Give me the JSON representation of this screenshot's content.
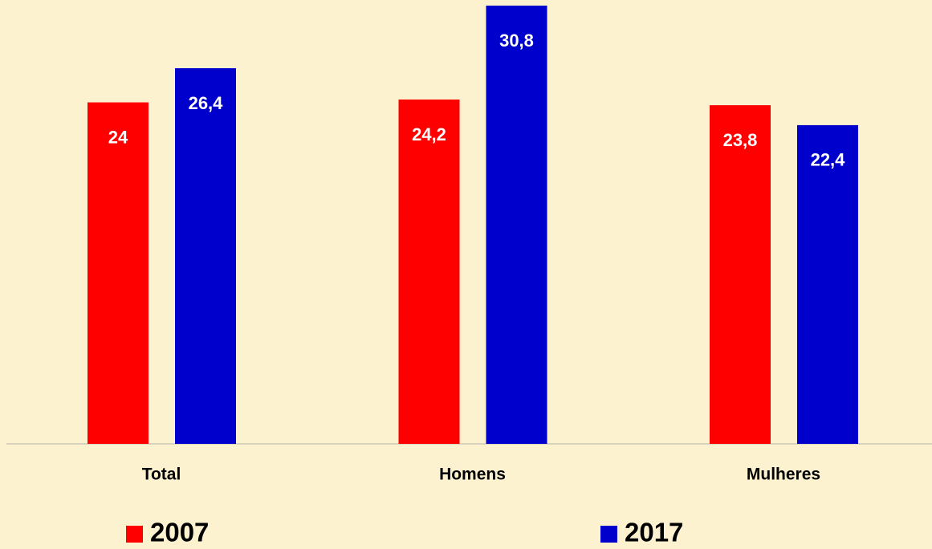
{
  "chart_data": {
    "type": "bar",
    "categories": [
      "Total",
      "Homens",
      "Mulheres"
    ],
    "series": [
      {
        "name": "2007",
        "color": "#ff0000",
        "values": [
          24,
          24.2,
          23.8
        ],
        "value_labels": [
          "24",
          "24,2",
          "23,8"
        ]
      },
      {
        "name": "2017",
        "color": "#0000cc",
        "values": [
          26.4,
          30.8,
          22.4
        ],
        "value_labels": [
          "26,4",
          "30,8",
          "22,4"
        ]
      }
    ],
    "ylim": [
      0,
      31
    ]
  }
}
